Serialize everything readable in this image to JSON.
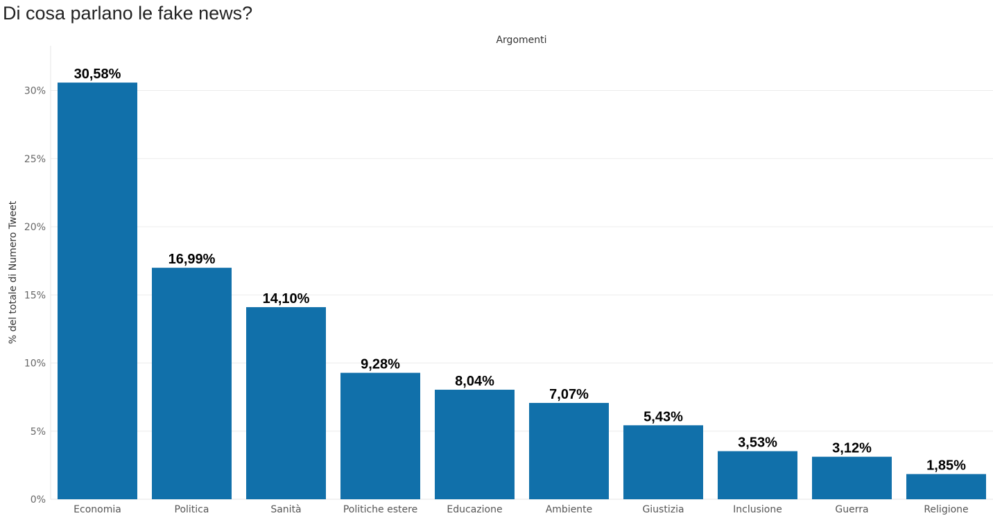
{
  "page": {
    "title": "Di cosa parlano le fake news?"
  },
  "chart_data": {
    "type": "bar",
    "header": "Argomenti",
    "ylabel": "% del totale di Numero Tweet",
    "categories": [
      "Economia",
      "Politica",
      "Sanità",
      "Politiche estere",
      "Educazione",
      "Ambiente",
      "Giustizia",
      "Inclusione",
      "Guerra",
      "Religione"
    ],
    "values": [
      30.58,
      16.99,
      14.1,
      9.28,
      8.04,
      7.07,
      5.43,
      3.53,
      3.12,
      1.85
    ],
    "data_labels": [
      "30,58%",
      "16,99%",
      "14,10%",
      "9,28%",
      "8,04%",
      "7,07%",
      "5,43%",
      "3,53%",
      "3,12%",
      "1,85%"
    ],
    "y_ticks": [
      0,
      5,
      10,
      15,
      20,
      25,
      30
    ],
    "y_tick_labels": [
      "0%",
      "5%",
      "10%",
      "15%",
      "20%",
      "25%",
      "30%"
    ],
    "ylim": [
      0,
      33
    ],
    "grid": true,
    "bar_color": "#1170aa"
  }
}
